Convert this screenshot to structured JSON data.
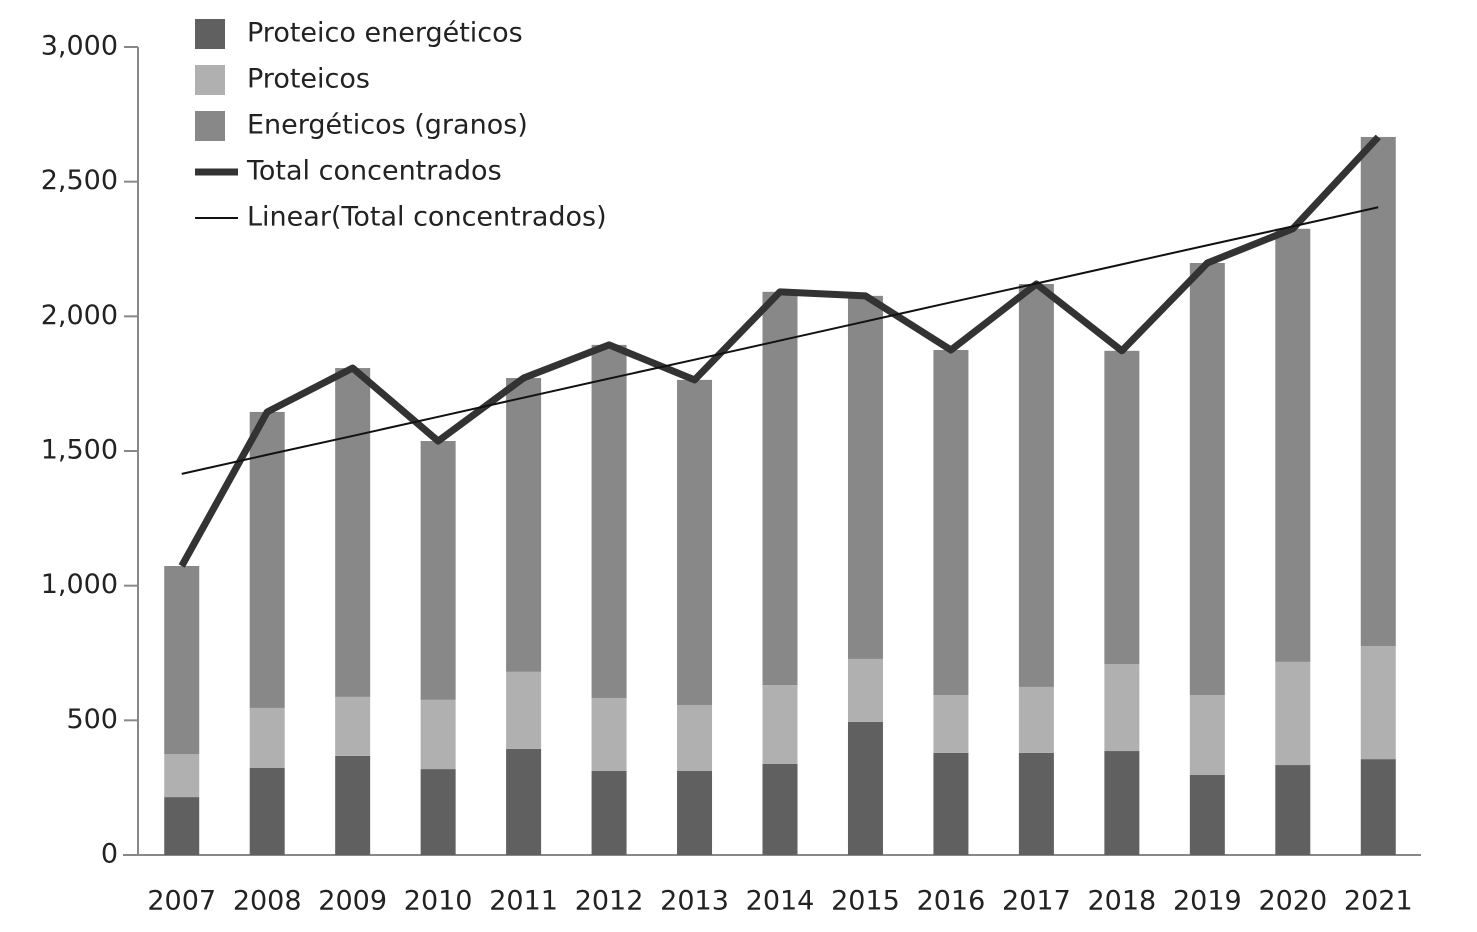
{
  "chart_data": {
    "type": "bar",
    "categories": [
      "2007",
      "2008",
      "2009",
      "2010",
      "2011",
      "2012",
      "2013",
      "2014",
      "2015",
      "2016",
      "2017",
      "2018",
      "2019",
      "2020",
      "2021"
    ],
    "series": [
      {
        "name": "Proteico energéticos",
        "color": "#606060",
        "values": [
          215,
          323,
          368,
          319,
          394,
          312,
          312,
          338,
          494,
          379,
          379,
          386,
          297,
          334,
          356
        ]
      },
      {
        "name": "Proteicos",
        "color": "#b0b0b0",
        "values": [
          160,
          223,
          219,
          257,
          286,
          271,
          245,
          293,
          234,
          215,
          245,
          323,
          297,
          383,
          420
        ]
      },
      {
        "name": "Energéticos (granos)",
        "color": "#888888",
        "values": [
          698,
          1099,
          1221,
          961,
          1091,
          1311,
          1207,
          1460,
          1348,
          1281,
          1496,
          1163,
          1604,
          1608,
          1890
        ]
      },
      {
        "name": "Total concentrados",
        "type": "line",
        "color": "#333333",
        "values": [
          1073,
          1645,
          1808,
          1537,
          1771,
          1894,
          1764,
          2091,
          2076,
          1875,
          2120,
          1872,
          2198,
          2325,
          2666
        ]
      },
      {
        "name": "Linear(Total concentrados)",
        "type": "line",
        "color": "#111111",
        "values": [
          1415,
          1486,
          1556,
          1627,
          1698,
          1769,
          1839,
          1910,
          1981,
          2052,
          2122,
          2193,
          2264,
          2334,
          2405
        ]
      }
    ],
    "stacked": true,
    "ylim": [
      0,
      3000
    ],
    "yticks": [
      0,
      500,
      {
        "value": 1000,
        "label": "1,000"
      },
      {
        "value": 1500,
        "label": "1,500"
      },
      {
        "value": 2000,
        "label": "2,000"
      },
      {
        "value": 2500,
        "label": "2,500"
      },
      {
        "value": 3000,
        "label": "3,000"
      }
    ],
    "legend": "top-left"
  }
}
